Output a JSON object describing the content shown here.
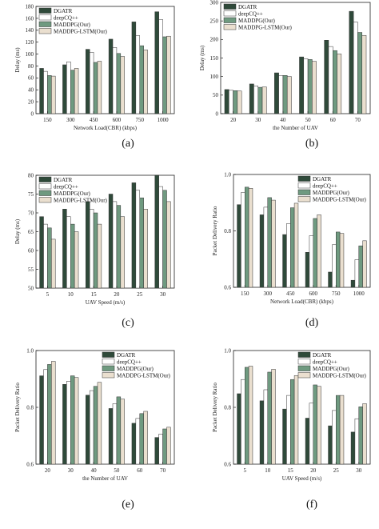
{
  "colors": {
    "DGATR": "#2f4a3a",
    "deepCQ++": "#ffffff",
    "MADDPG(Our)": "#6f9a80",
    "MADDPG-LSTM(Our)": "#eadfcf"
  },
  "chart_data": [
    {
      "type": "bar",
      "panel_label": "(a)",
      "categories": [
        "150",
        "300",
        "450",
        "600",
        "750",
        "1000"
      ],
      "xlabel": "Network Load(CBR) (kbps)",
      "ylabel": "Delay (ms)",
      "ylim": [
        0,
        180
      ],
      "yticks": [
        0,
        20,
        40,
        60,
        80,
        100,
        120,
        140,
        160,
        180
      ],
      "ytick_labels": [
        "0",
        "20",
        "40",
        "60",
        "80",
        "100",
        "120",
        "140",
        "160",
        "180"
      ],
      "legend": "top-left",
      "series": [
        {
          "name": "DGATR",
          "values": [
            76,
            82,
            108,
            125,
            154,
            171
          ]
        },
        {
          "name": "deepCQ++",
          "values": [
            71,
            87,
            103,
            111,
            131,
            158
          ]
        },
        {
          "name": "MADDPG(Our)",
          "values": [
            64,
            73,
            86,
            101,
            114,
            129
          ]
        },
        {
          "name": "MADDPG-LSTM(Our)",
          "values": [
            63,
            76,
            88,
            96,
            107,
            130
          ]
        }
      ]
    },
    {
      "type": "bar",
      "panel_label": "(b)",
      "categories": [
        "20",
        "30",
        "40",
        "50",
        "60",
        "70"
      ],
      "xlabel": "the Number of UAV",
      "ylabel": "Delay (ms)",
      "ylim": [
        0,
        300
      ],
      "yticks": [
        0,
        50,
        100,
        150,
        200,
        250,
        300
      ],
      "ytick_labels": [
        "0",
        "50",
        "100",
        "150",
        "200",
        "250",
        "300"
      ],
      "legend": "top-left",
      "series": [
        {
          "name": "DGATR",
          "values": [
            65,
            80,
            110,
            153,
            198,
            276
          ]
        },
        {
          "name": "deepCQ++",
          "values": [
            63,
            75,
            103,
            148,
            181,
            247
          ]
        },
        {
          "name": "MADDPG(Our)",
          "values": [
            62,
            71,
            103,
            146,
            170,
            219
          ]
        },
        {
          "name": "MADDPG-LSTM(Our)",
          "values": [
            61,
            72,
            100,
            141,
            161,
            211
          ]
        }
      ]
    },
    {
      "type": "bar",
      "panel_label": "(c)",
      "categories": [
        "5",
        "10",
        "15",
        "20",
        "25",
        "30"
      ],
      "xlabel": "UAV Speed (m/s)",
      "ylabel": "Delay (ms)",
      "ylim": [
        50,
        80
      ],
      "yticks": [
        50,
        55,
        60,
        65,
        70,
        75,
        80
      ],
      "ytick_labels": [
        "50",
        "55",
        "60",
        "65",
        "70",
        "75",
        "80"
      ],
      "legend": "top-left",
      "series": [
        {
          "name": "DGATR",
          "values": [
            69,
            71,
            73,
            75,
            78,
            80
          ]
        },
        {
          "name": "deepCQ++",
          "values": [
            67,
            69,
            71,
            73,
            76,
            77
          ]
        },
        {
          "name": "MADDPG(Our)",
          "values": [
            66,
            67,
            70,
            72,
            74,
            76
          ]
        },
        {
          "name": "MADDPG-LSTM(Our)",
          "values": [
            63,
            65,
            67,
            69,
            71,
            73
          ]
        }
      ]
    },
    {
      "type": "bar",
      "panel_label": "(d)",
      "categories": [
        "150",
        "300",
        "450",
        "600",
        "750",
        "1000"
      ],
      "xlabel": "Network Load(CBR) (kbps)",
      "ylabel": "Packet Delivery Ratio",
      "ylim": [
        0.6,
        1.0
      ],
      "yticks": [
        0.6,
        0.8,
        1.0
      ],
      "ytick_labels": [
        "0.6",
        "0.8",
        "1.0"
      ],
      "legend": "top-right",
      "series": [
        {
          "name": "DGATR",
          "values": [
            0.893,
            0.857,
            0.787,
            0.724,
            0.654,
            0.625
          ]
        },
        {
          "name": "deepCQ++",
          "values": [
            0.936,
            0.884,
            0.826,
            0.783,
            0.751,
            0.698
          ]
        },
        {
          "name": "MADDPG(Our)",
          "values": [
            0.955,
            0.918,
            0.882,
            0.844,
            0.796,
            0.747
          ]
        },
        {
          "name": "MADDPG-LSTM(Our)",
          "values": [
            0.951,
            0.909,
            0.898,
            0.857,
            0.791,
            0.765
          ]
        }
      ]
    },
    {
      "type": "bar",
      "panel_label": "(e)",
      "categories": [
        "20",
        "30",
        "40",
        "50",
        "60",
        "70"
      ],
      "xlabel": "the Number of UAV",
      "ylabel": "Packet Delivery Ratio",
      "ylim": [
        0.6,
        1.0
      ],
      "yticks": [
        0.6,
        0.8,
        1.0
      ],
      "ytick_labels": [
        "0.6",
        "0.8",
        "1.0"
      ],
      "legend": "top-right",
      "series": [
        {
          "name": "DGATR",
          "values": [
            0.911,
            0.881,
            0.843,
            0.796,
            0.744,
            0.694
          ]
        },
        {
          "name": "deepCQ++",
          "values": [
            0.933,
            0.892,
            0.859,
            0.813,
            0.761,
            0.706
          ]
        },
        {
          "name": "MADDPG(Our)",
          "values": [
            0.951,
            0.911,
            0.874,
            0.837,
            0.778,
            0.724
          ]
        },
        {
          "name": "MADDPG-LSTM(Our)",
          "values": [
            0.962,
            0.905,
            0.888,
            0.829,
            0.786,
            0.73
          ]
        }
      ]
    },
    {
      "type": "bar",
      "panel_label": "(f)",
      "categories": [
        "5",
        "10",
        "15",
        "20",
        "25",
        "30"
      ],
      "xlabel": "UAV Speed (m/s)",
      "ylabel": "Packet Delivery Ratio",
      "ylim": [
        0.6,
        1.0
      ],
      "yticks": [
        0.6,
        0.8,
        1.0
      ],
      "ytick_labels": [
        "0.6",
        "0.8",
        "1.0"
      ],
      "legend": "top-right",
      "series": [
        {
          "name": "DGATR",
          "values": [
            0.848,
            0.823,
            0.794,
            0.762,
            0.735,
            0.713
          ]
        },
        {
          "name": "deepCQ++",
          "values": [
            0.898,
            0.862,
            0.842,
            0.815,
            0.789,
            0.76
          ]
        },
        {
          "name": "MADDPG(Our)",
          "values": [
            0.941,
            0.924,
            0.898,
            0.879,
            0.842,
            0.802
          ]
        },
        {
          "name": "MADDPG-LSTM(Our)",
          "values": [
            0.945,
            0.934,
            0.912,
            0.874,
            0.842,
            0.813
          ]
        }
      ]
    }
  ]
}
